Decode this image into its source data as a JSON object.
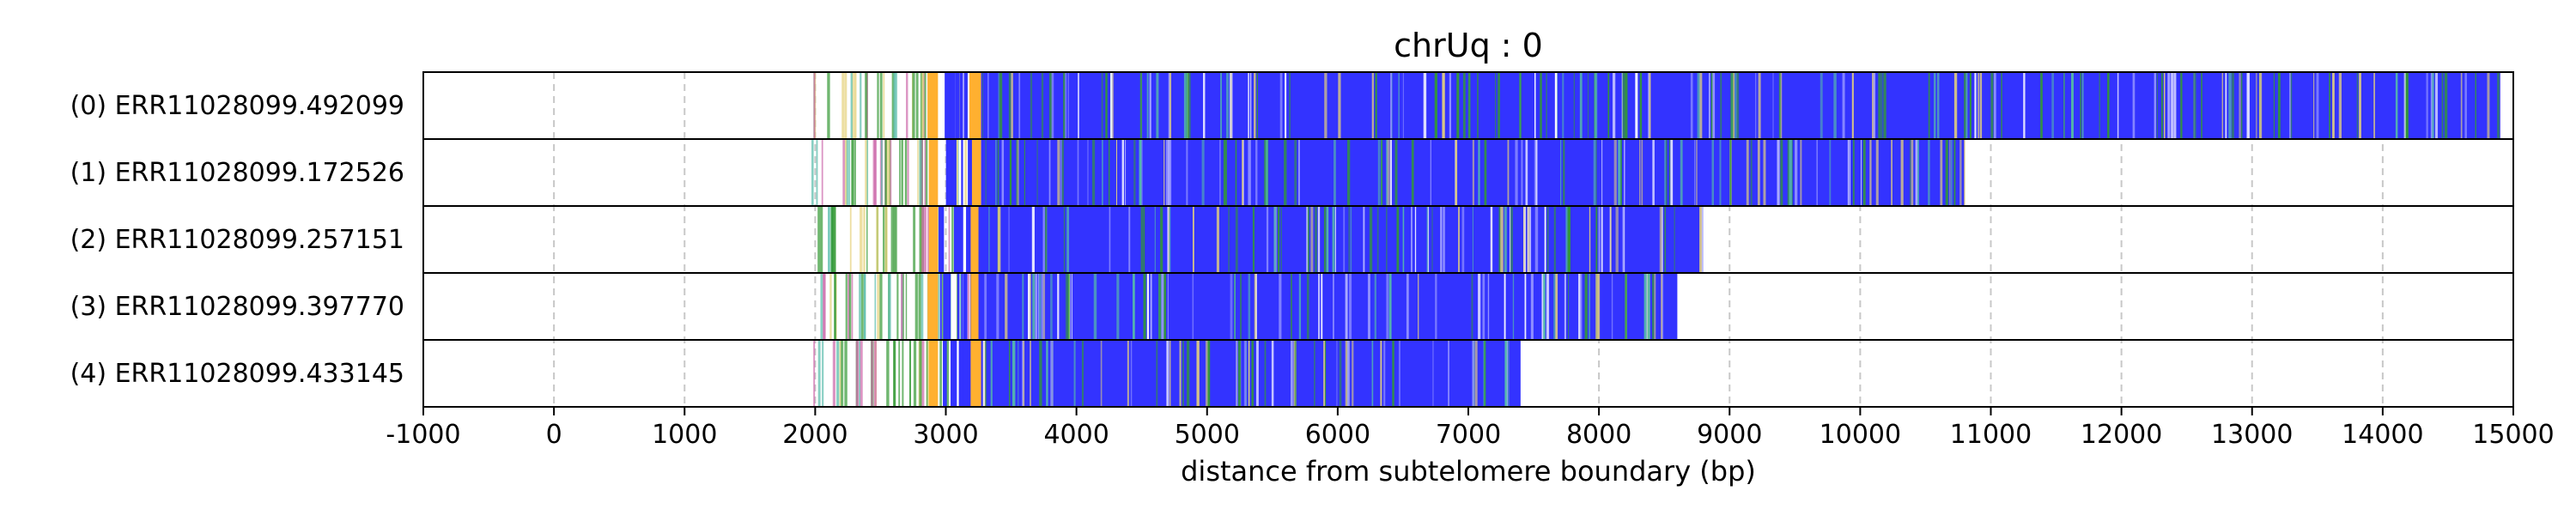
{
  "chart_data": {
    "type": "read-track",
    "title": "chrUq : 0",
    "xlabel": "distance from subtelomere boundary (bp)",
    "ylabel": "",
    "xlim": [
      -1000,
      15000
    ],
    "x_ticks": [
      "-1000",
      "0",
      "1000",
      "2000",
      "3000",
      "4000",
      "5000",
      "6000",
      "7000",
      "8000",
      "9000",
      "10000",
      "11000",
      "12000",
      "13000",
      "14000",
      "15000"
    ],
    "grid": "vertical dashed",
    "colors": {
      "telomere_blue": "#3333ff",
      "boundary_orange": "#ffb030",
      "variant_green": "#339933",
      "variant_pink": "#cc66aa",
      "variant_yellow": "#e6d27a",
      "variant_teal": "#55bbaa",
      "frame": "#000000",
      "grid": "#c8c8c8"
    },
    "reads": [
      {
        "label": "(0) ERR11028099.492099",
        "start": 1980,
        "orange": [
          2860,
          2940
        ],
        "orange2": [
          3180,
          3270
        ],
        "blue_start": 3270,
        "end": 14900
      },
      {
        "label": "(1) ERR11028099.172526",
        "start": 1960,
        "orange": [
          2870,
          2940
        ],
        "orange2": [
          3200,
          3270
        ],
        "blue_start": 3270,
        "end": 10800
      },
      {
        "label": "(2) ERR11028099.257151",
        "start": 1960,
        "orange": [
          2870,
          2940
        ],
        "orange2": [
          3190,
          3250
        ],
        "blue_start": 3250,
        "end": 8800
      },
      {
        "label": "(3) ERR11028099.397770",
        "start": 1960,
        "orange": [
          2860,
          2940
        ],
        "orange2": [
          3190,
          3250
        ],
        "blue_start": 3250,
        "end": 8600
      },
      {
        "label": "(4) ERR11028099.433145",
        "start": 1980,
        "orange": [
          2870,
          2940
        ],
        "orange2": [
          3190,
          3270
        ],
        "blue_start": 3270,
        "end": 7400
      }
    ]
  }
}
